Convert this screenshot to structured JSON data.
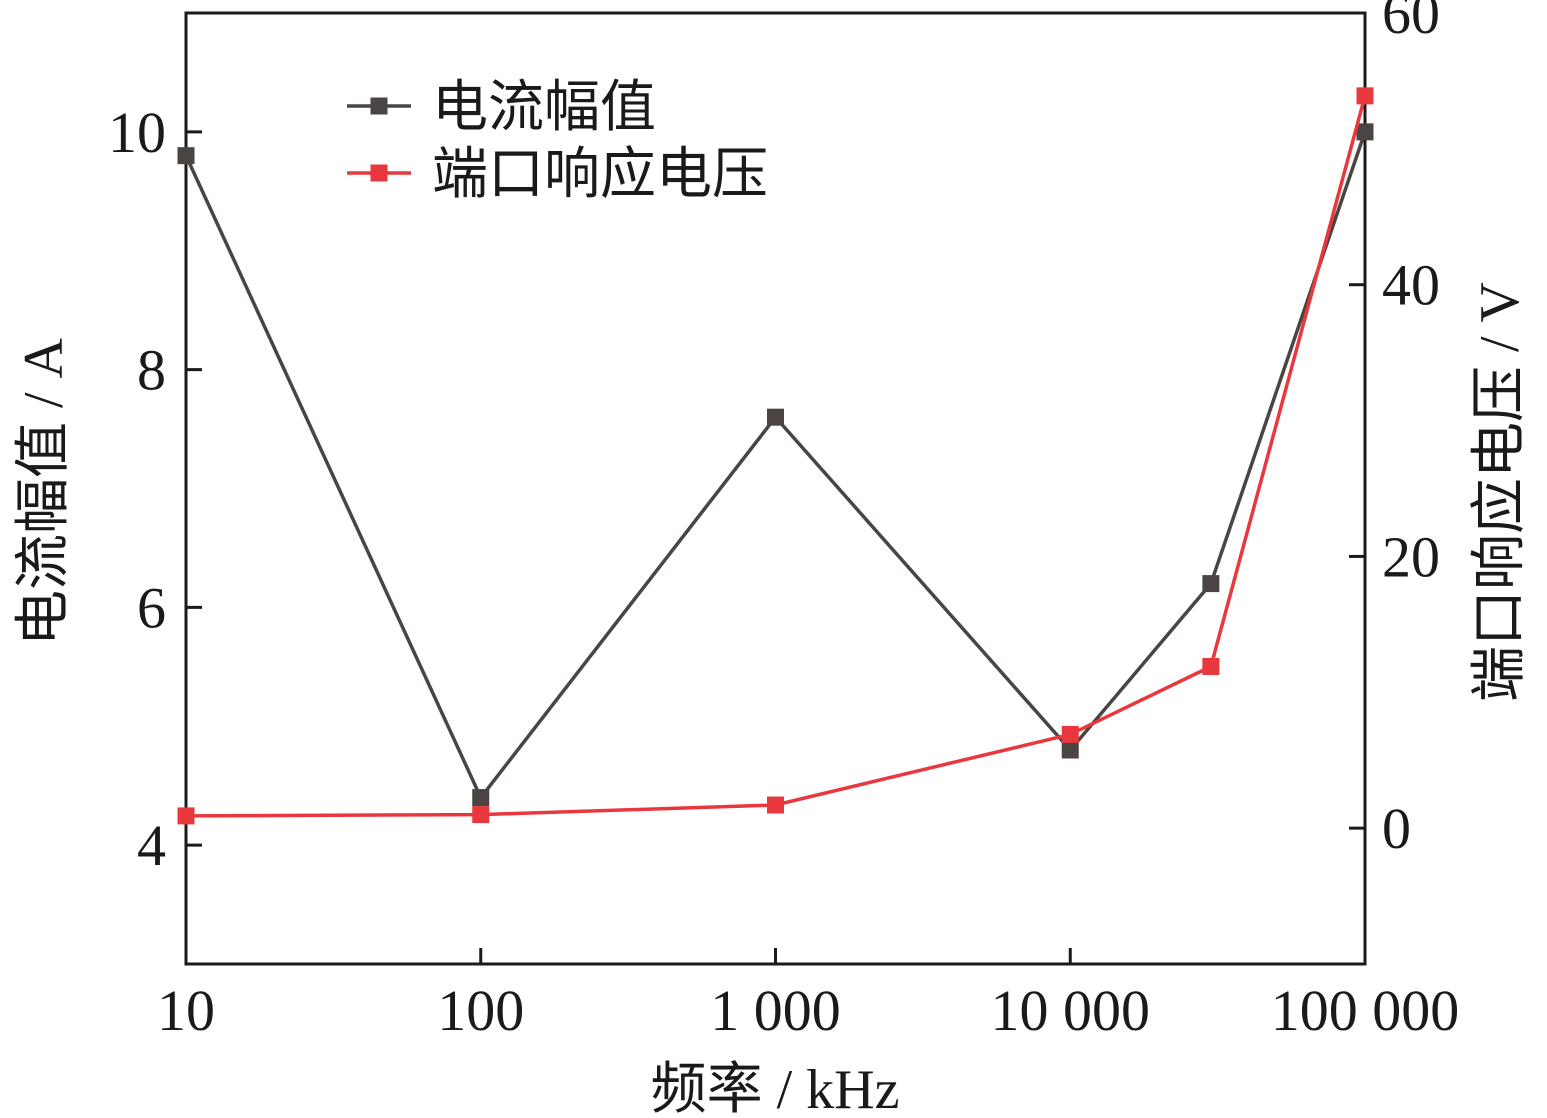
{
  "chart_data": {
    "type": "line",
    "x_scale": "log",
    "x": [
      10,
      100,
      1000,
      10000,
      30000,
      100000
    ],
    "xticks": [
      10,
      100,
      1000,
      10000,
      100000
    ],
    "xtick_labels": [
      "10",
      "100",
      "1 000",
      "10 000",
      "100 000"
    ],
    "xlabel": "频率 / kHz",
    "xlim": [
      10,
      100000
    ],
    "ylabel_left": "电流幅值 / A",
    "ylim_left": [
      3,
      11
    ],
    "yticks_left": [
      4,
      6,
      8,
      10
    ],
    "ytick_labels_left": [
      "4",
      "6",
      "8",
      "10"
    ],
    "ylabel_right": "端口响应电压 / V",
    "ylim_right": [
      -10,
      60
    ],
    "yticks_right": [
      0,
      20,
      40,
      60
    ],
    "ytick_labels_right": [
      "0",
      "20",
      "40",
      "60"
    ],
    "grid": false,
    "legend_position": "top-left",
    "series": [
      {
        "name": "电流幅值",
        "axis": "left",
        "color": "#4a4542",
        "marker": "square",
        "values": [
          9.8,
          4.4,
          7.6,
          4.8,
          6.2,
          10.0
        ]
      },
      {
        "name": "端口响应电压",
        "axis": "right",
        "color": "#e8383d",
        "marker": "square",
        "values": [
          0.9,
          1.0,
          1.7,
          6.9,
          11.9,
          53.9
        ]
      }
    ]
  }
}
